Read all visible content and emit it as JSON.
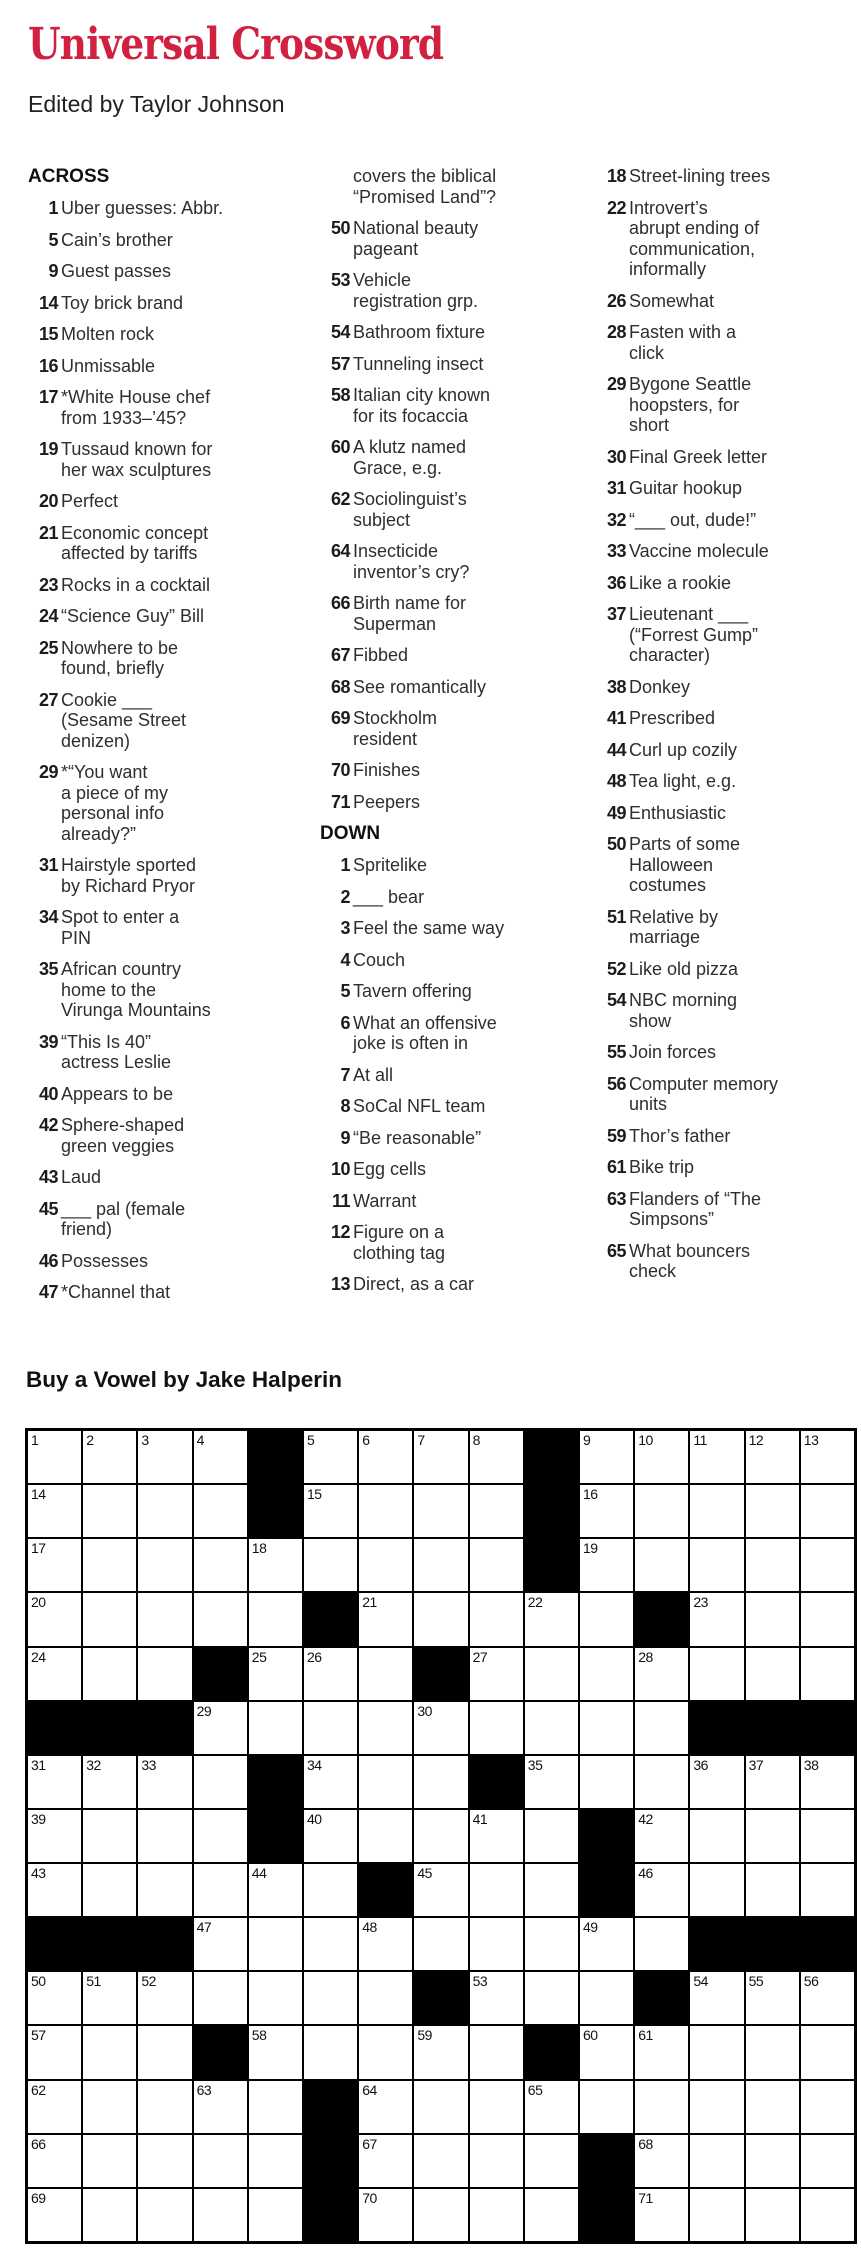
{
  "page": {
    "title": "Universal Crossword",
    "byline": "Edited by Taylor Johnson",
    "grid_title": "Buy a Vowel by Jake Halperin",
    "accent_color": "#d22040"
  },
  "clue_columns": [
    {
      "items": [
        {
          "h": "ACROSS"
        },
        {
          "n": "1",
          "t": "Uber guesses: Abbr."
        },
        {
          "n": "5",
          "t": "Cain’s brother"
        },
        {
          "n": "9",
          "t": "Guest passes"
        },
        {
          "n": "14",
          "t": "Toy brick brand"
        },
        {
          "n": "15",
          "t": "Molten rock"
        },
        {
          "n": "16",
          "t": "Unmissable"
        },
        {
          "n": "17",
          "t": "*White House chef\nfrom 1933–’45?"
        },
        {
          "n": "19",
          "t": "Tussaud known for\nher wax sculptures"
        },
        {
          "n": "20",
          "t": "Perfect"
        },
        {
          "n": "21",
          "t": "Economic concept\naffected by tariffs"
        },
        {
          "n": "23",
          "t": "Rocks in a cocktail"
        },
        {
          "n": "24",
          "t": "“Science Guy” Bill"
        },
        {
          "n": "25",
          "t": "Nowhere to be\nfound, briefly"
        },
        {
          "n": "27",
          "t": "Cookie ___\n(Sesame Street\ndenizen)"
        },
        {
          "n": "29",
          "t": "*“You want\na piece of my\npersonal info\nalready?”"
        },
        {
          "n": "31",
          "t": "Hairstyle sported\nby Richard Pryor"
        },
        {
          "n": "34",
          "t": "Spot to enter a\nPIN"
        },
        {
          "n": "35",
          "t": "African country\nhome to the\nVirunga Mountains"
        },
        {
          "n": "39",
          "t": "“This Is 40”\nactress Leslie"
        },
        {
          "n": "40",
          "t": "Appears to be"
        },
        {
          "n": "42",
          "t": "Sphere-shaped\ngreen veggies"
        },
        {
          "n": "43",
          "t": "Laud"
        },
        {
          "n": "45",
          "t": "___ pal (female\nfriend)"
        },
        {
          "n": "46",
          "t": "Possesses"
        },
        {
          "n": "47",
          "t": "*Channel that"
        }
      ]
    },
    {
      "items": [
        {
          "n": "",
          "t": "covers the biblical\n“Promised Land”?"
        },
        {
          "n": "50",
          "t": "National beauty\npageant"
        },
        {
          "n": "53",
          "t": "Vehicle\nregistration grp."
        },
        {
          "n": "54",
          "t": "Bathroom fixture"
        },
        {
          "n": "57",
          "t": "Tunneling insect"
        },
        {
          "n": "58",
          "t": "Italian city known\nfor its focaccia"
        },
        {
          "n": "60",
          "t": "A klutz named\nGrace, e.g."
        },
        {
          "n": "62",
          "t": "Sociolinguist’s\nsubject"
        },
        {
          "n": "64",
          "t": "Insecticide\ninventor’s cry?"
        },
        {
          "n": "66",
          "t": "Birth name for\nSuperman"
        },
        {
          "n": "67",
          "t": "Fibbed"
        },
        {
          "n": "68",
          "t": "See romantically"
        },
        {
          "n": "69",
          "t": "Stockholm\nresident"
        },
        {
          "n": "70",
          "t": "Finishes"
        },
        {
          "n": "71",
          "t": "Peepers"
        },
        {
          "h": "DOWN"
        },
        {
          "n": "1",
          "t": "Spritelike"
        },
        {
          "n": "2",
          "t": "___ bear"
        },
        {
          "n": "3",
          "t": "Feel the same way"
        },
        {
          "n": "4",
          "t": "Couch"
        },
        {
          "n": "5",
          "t": "Tavern offering"
        },
        {
          "n": "6",
          "t": "What an offensive\njoke is often in"
        },
        {
          "n": "7",
          "t": "At all"
        },
        {
          "n": "8",
          "t": "SoCal NFL team"
        },
        {
          "n": "9",
          "t": "“Be reasonable”"
        },
        {
          "n": "10",
          "t": "Egg cells"
        },
        {
          "n": "11",
          "t": "Warrant"
        },
        {
          "n": "12",
          "t": "Figure on a\nclothing tag"
        },
        {
          "n": "13",
          "t": "Direct, as a car"
        }
      ]
    },
    {
      "items": [
        {
          "n": "18",
          "t": "Street-lining trees"
        },
        {
          "n": "22",
          "t": "Introvert’s\nabrupt ending of\ncommunication,\ninformally"
        },
        {
          "n": "26",
          "t": "Somewhat"
        },
        {
          "n": "28",
          "t": "Fasten with a\nclick"
        },
        {
          "n": "29",
          "t": "Bygone Seattle\nhoopsters, for\nshort"
        },
        {
          "n": "30",
          "t": "Final Greek letter"
        },
        {
          "n": "31",
          "t": "Guitar hookup"
        },
        {
          "n": "32",
          "t": "“___ out, dude!”"
        },
        {
          "n": "33",
          "t": "Vaccine molecule"
        },
        {
          "n": "36",
          "t": "Like a rookie"
        },
        {
          "n": "37",
          "t": "Lieutenant ___\n(“Forrest Gump”\ncharacter)"
        },
        {
          "n": "38",
          "t": "Donkey"
        },
        {
          "n": "41",
          "t": "Prescribed"
        },
        {
          "n": "44",
          "t": "Curl up cozily"
        },
        {
          "n": "48",
          "t": "Tea light, e.g."
        },
        {
          "n": "49",
          "t": "Enthusiastic"
        },
        {
          "n": "50",
          "t": "Parts of some\nHalloween\ncostumes"
        },
        {
          "n": "51",
          "t": "Relative by\nmarriage"
        },
        {
          "n": "52",
          "t": "Like old pizza"
        },
        {
          "n": "54",
          "t": "NBC morning\nshow"
        },
        {
          "n": "55",
          "t": "Join forces"
        },
        {
          "n": "56",
          "t": "Computer memory\nunits"
        },
        {
          "n": "59",
          "t": "Thor’s father"
        },
        {
          "n": "61",
          "t": "Bike trip"
        },
        {
          "n": "63",
          "t": "Flanders of “The\nSimpsons”"
        },
        {
          "n": "65",
          "t": "What bouncers\ncheck"
        }
      ]
    }
  ],
  "grid": {
    "rows": 15,
    "cols": 15,
    "cells": [
      [
        "1",
        "2",
        "3",
        "4",
        "#",
        "5",
        "6",
        "7",
        "8",
        "#",
        "9",
        "10",
        "11",
        "12",
        "13"
      ],
      [
        "14",
        "",
        "",
        "",
        "#",
        "15",
        "",
        "",
        "",
        "#",
        "16",
        "",
        "",
        "",
        ""
      ],
      [
        "17",
        "",
        "",
        "",
        "18",
        "",
        "",
        "",
        "",
        "#",
        "19",
        "",
        "",
        "",
        ""
      ],
      [
        "20",
        "",
        "",
        "",
        "",
        "#",
        "21",
        "",
        "",
        "22",
        "",
        "#",
        "23",
        "",
        ""
      ],
      [
        "24",
        "",
        "",
        "#",
        "25",
        "26",
        "",
        "#",
        "27",
        "",
        "",
        "28",
        "",
        "",
        ""
      ],
      [
        "#",
        "#",
        "#",
        "29",
        "",
        "",
        "",
        "30",
        "",
        "",
        "",
        "",
        "#",
        "#",
        "#"
      ],
      [
        "31",
        "32",
        "33",
        "",
        "#",
        "34",
        "",
        "",
        "#",
        "35",
        "",
        "",
        "36",
        "37",
        "38"
      ],
      [
        "39",
        "",
        "",
        "",
        "#",
        "40",
        "",
        "",
        "41",
        "",
        "#",
        "42",
        "",
        "",
        ""
      ],
      [
        "43",
        "",
        "",
        "",
        "44",
        "",
        "#",
        "45",
        "",
        "",
        "#",
        "46",
        "",
        "",
        ""
      ],
      [
        "#",
        "#",
        "#",
        "47",
        "",
        "",
        "48",
        "",
        "",
        "",
        "49",
        "",
        "#",
        "#",
        "#"
      ],
      [
        "50",
        "51",
        "52",
        "",
        "",
        "",
        "",
        "#",
        "53",
        "",
        "",
        "#",
        "54",
        "55",
        "56"
      ],
      [
        "57",
        "",
        "",
        "#",
        "58",
        "",
        "",
        "59",
        "",
        "#",
        "60",
        "61",
        "",
        "",
        ""
      ],
      [
        "62",
        "",
        "",
        "63",
        "",
        "#",
        "64",
        "",
        "",
        "65",
        "",
        "",
        "",
        "",
        ""
      ],
      [
        "66",
        "",
        "",
        "",
        "",
        "#",
        "67",
        "",
        "",
        "",
        "#",
        "68",
        "",
        "",
        ""
      ],
      [
        "69",
        "",
        "",
        "",
        "",
        "#",
        "70",
        "",
        "",
        "",
        "#",
        "71",
        "",
        "",
        ""
      ]
    ]
  }
}
